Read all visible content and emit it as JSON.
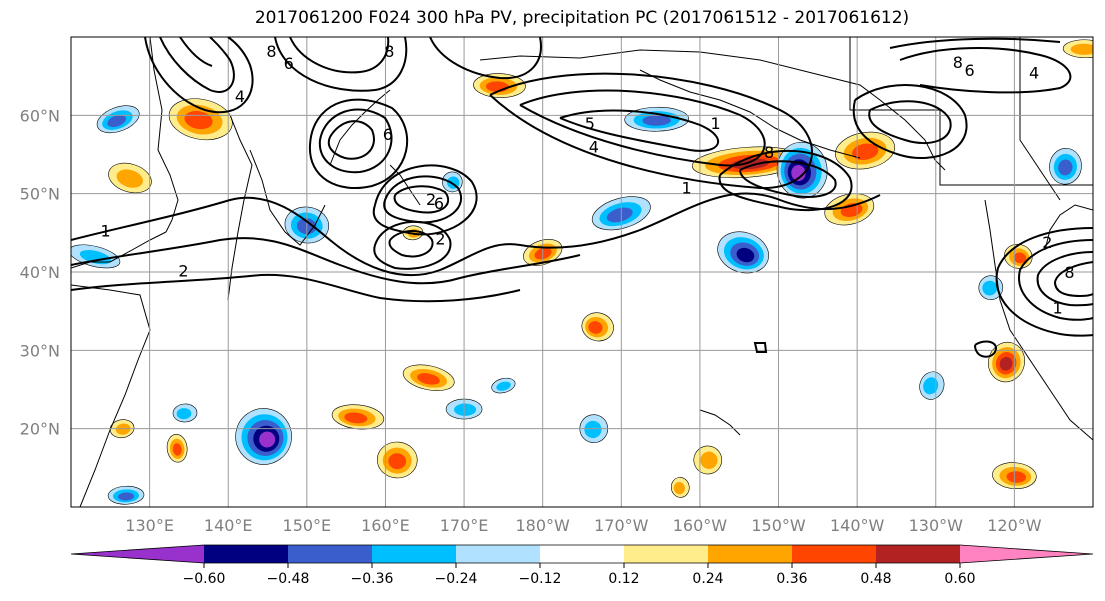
{
  "title": "2017061200 F024 300 hPa PV, precipitation PC (2017061512 - 2017061612)",
  "map": {
    "projection": "lat-lon",
    "lon_range": [
      120,
      250
    ],
    "lat_range": [
      10,
      70
    ],
    "gridlines": true,
    "lat_ticks": [
      {
        "lat": 60,
        "label": "60°N"
      },
      {
        "lat": 50,
        "label": "50°N"
      },
      {
        "lat": 40,
        "label": "40°N"
      },
      {
        "lat": 30,
        "label": "30°N"
      },
      {
        "lat": 20,
        "label": "20°N"
      }
    ],
    "lon_ticks": [
      {
        "lon": 130,
        "label": "130°E"
      },
      {
        "lon": 140,
        "label": "140°E"
      },
      {
        "lon": 150,
        "label": "150°E"
      },
      {
        "lon": 160,
        "label": "160°E"
      },
      {
        "lon": 170,
        "label": "170°E"
      },
      {
        "lon": 180,
        "label": "180°W"
      },
      {
        "lon": 190,
        "label": "170°W"
      },
      {
        "lon": 200,
        "label": "160°W"
      },
      {
        "lon": 210,
        "label": "150°W"
      },
      {
        "lon": 220,
        "label": "140°W"
      },
      {
        "lon": 230,
        "label": "130°W"
      },
      {
        "lon": 240,
        "label": "120°W"
      }
    ],
    "pv_contour_labels": [
      {
        "text": "8",
        "lon": 145.5,
        "lat": 68.2
      },
      {
        "text": "6",
        "lon": 147.7,
        "lat": 66.7
      },
      {
        "text": "4",
        "lon": 141.5,
        "lat": 62.5
      },
      {
        "text": "8",
        "lon": 160.5,
        "lat": 68.2
      },
      {
        "text": "6",
        "lon": 160.3,
        "lat": 57.6
      },
      {
        "text": "2",
        "lon": 165.8,
        "lat": 49.3
      },
      {
        "text": "6",
        "lon": 166.8,
        "lat": 48.8
      },
      {
        "text": "2",
        "lon": 167.0,
        "lat": 44.3
      },
      {
        "text": "1",
        "lon": 124.4,
        "lat": 45.3
      },
      {
        "text": "2",
        "lon": 134.3,
        "lat": 40.2
      },
      {
        "text": "5",
        "lon": 186.0,
        "lat": 59.0
      },
      {
        "text": "1",
        "lon": 202.0,
        "lat": 59.0
      },
      {
        "text": "8",
        "lon": 208.8,
        "lat": 55.3
      },
      {
        "text": "4",
        "lon": 186.5,
        "lat": 56.0
      },
      {
        "text": "1",
        "lon": 198.3,
        "lat": 50.8
      },
      {
        "text": "8",
        "lon": 232.8,
        "lat": 66.8
      },
      {
        "text": "6",
        "lon": 234.3,
        "lat": 65.8
      },
      {
        "text": "4",
        "lon": 242.5,
        "lat": 65.5
      },
      {
        "text": "2",
        "lon": 244.2,
        "lat": 43.8
      },
      {
        "text": "8",
        "lon": 247.0,
        "lat": 40.0
      },
      {
        "text": "1",
        "lon": 245.5,
        "lat": 35.5
      }
    ],
    "pc_shading": [
      {
        "lon": 126.0,
        "lat": 59.5,
        "rx": 22,
        "ry": 12,
        "value": -0.4
      },
      {
        "lon": 127.5,
        "lat": 52.0,
        "rx": 22,
        "ry": 14,
        "value": 0.3
      },
      {
        "lon": 123.0,
        "lat": 42.0,
        "rx": 26,
        "ry": 10,
        "value": -0.3
      },
      {
        "lon": 136.5,
        "lat": 59.5,
        "rx": 32,
        "ry": 20,
        "value": 0.4
      },
      {
        "lon": 150.0,
        "lat": 46.0,
        "rx": 22,
        "ry": 18,
        "value": -0.4
      },
      {
        "lon": 168.5,
        "lat": 51.5,
        "rx": 10,
        "ry": 10,
        "value": -0.3
      },
      {
        "lon": 174.5,
        "lat": 63.8,
        "rx": 26,
        "ry": 12,
        "value": 0.4
      },
      {
        "lon": 194.5,
        "lat": 59.5,
        "rx": 32,
        "ry": 12,
        "value": -0.4
      },
      {
        "lon": 206.0,
        "lat": 54.0,
        "rx": 55,
        "ry": 15,
        "value": 0.5
      },
      {
        "lon": 213.0,
        "lat": 53.0,
        "rx": 25,
        "ry": 28,
        "value": -0.6
      },
      {
        "lon": 221.0,
        "lat": 55.5,
        "rx": 30,
        "ry": 18,
        "value": 0.4
      },
      {
        "lon": 219.0,
        "lat": 48.0,
        "rx": 25,
        "ry": 15,
        "value": 0.4
      },
      {
        "lon": 190.0,
        "lat": 47.5,
        "rx": 30,
        "ry": 15,
        "value": -0.4
      },
      {
        "lon": 180.0,
        "lat": 42.5,
        "rx": 20,
        "ry": 12,
        "value": 0.4
      },
      {
        "lon": 205.5,
        "lat": 42.5,
        "rx": 26,
        "ry": 20,
        "value": -0.5
      },
      {
        "lon": 187.0,
        "lat": 33.0,
        "rx": 16,
        "ry": 14,
        "value": 0.4
      },
      {
        "lon": 165.5,
        "lat": 26.5,
        "rx": 26,
        "ry": 12,
        "value": 0.4
      },
      {
        "lon": 144.5,
        "lat": 19.0,
        "rx": 28,
        "ry": 28,
        "value": -0.6
      },
      {
        "lon": 156.5,
        "lat": 21.5,
        "rx": 26,
        "ry": 12,
        "value": 0.4
      },
      {
        "lon": 161.5,
        "lat": 16.0,
        "rx": 20,
        "ry": 18,
        "value": 0.4
      },
      {
        "lon": 170.0,
        "lat": 22.5,
        "rx": 18,
        "ry": 10,
        "value": -0.3
      },
      {
        "lon": 134.5,
        "lat": 22.0,
        "rx": 12,
        "ry": 9,
        "value": -0.3
      },
      {
        "lon": 133.5,
        "lat": 17.5,
        "rx": 10,
        "ry": 14,
        "value": 0.4
      },
      {
        "lon": 126.5,
        "lat": 20.0,
        "rx": 12,
        "ry": 9,
        "value": 0.3
      },
      {
        "lon": 186.5,
        "lat": 20.0,
        "rx": 14,
        "ry": 14,
        "value": -0.3
      },
      {
        "lon": 175.0,
        "lat": 25.5,
        "rx": 12,
        "ry": 7,
        "value": -0.3
      },
      {
        "lon": 201.0,
        "lat": 16.0,
        "rx": 14,
        "ry": 14,
        "value": 0.3
      },
      {
        "lon": 229.5,
        "lat": 25.5,
        "rx": 12,
        "ry": 14,
        "value": -0.3
      },
      {
        "lon": 239.0,
        "lat": 28.5,
        "rx": 18,
        "ry": 20,
        "value": 0.5
      },
      {
        "lon": 240.5,
        "lat": 42.0,
        "rx": 14,
        "ry": 12,
        "value": 0.4
      },
      {
        "lon": 237.0,
        "lat": 38.0,
        "rx": 12,
        "ry": 12,
        "value": -0.3
      },
      {
        "lon": 246.5,
        "lat": 53.5,
        "rx": 16,
        "ry": 18,
        "value": -0.4
      },
      {
        "lon": 240.0,
        "lat": 14.0,
        "rx": 22,
        "ry": 13,
        "value": 0.4
      },
      {
        "lon": 249.0,
        "lat": 68.5,
        "rx": 22,
        "ry": 9,
        "value": 0.3
      },
      {
        "lon": 127.0,
        "lat": 11.5,
        "rx": 18,
        "ry": 9,
        "value": -0.4
      },
      {
        "lon": 163.5,
        "lat": 45.0,
        "rx": 10,
        "ry": 7,
        "value": 0.25
      },
      {
        "lon": 197.5,
        "lat": 12.5,
        "rx": 9,
        "ry": 10,
        "value": 0.3
      }
    ]
  },
  "colorbar": {
    "levels": [
      -0.6,
      -0.48,
      -0.36,
      -0.24,
      -0.12,
      0.12,
      0.24,
      0.36,
      0.48,
      0.6
    ],
    "tick_labels": [
      "−0.60",
      "−0.48",
      "−0.36",
      "−0.24",
      "−0.12",
      "0.12",
      "0.24",
      "0.36",
      "0.48",
      "0.60"
    ],
    "colors": [
      "#9932cc",
      "#000080",
      "#3a5fcd",
      "#00bfff",
      "#b0e2ff",
      "#ffffff",
      "#ffec8b",
      "#ffa500",
      "#ff4500",
      "#b22222",
      "#ff83c0"
    ],
    "extend": "both"
  }
}
